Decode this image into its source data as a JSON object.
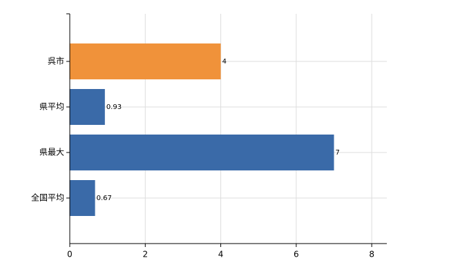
{
  "chart_data": {
    "type": "bar",
    "orientation": "horizontal",
    "categories": [
      "呉市",
      "県平均",
      "県最大",
      "全国平均"
    ],
    "values": [
      4,
      0.93,
      7,
      0.67
    ],
    "colors": [
      "#f0923a",
      "#3a6aa8",
      "#3a6aa8",
      "#3a6aa8"
    ],
    "xlim": [
      0,
      8.4
    ],
    "xticks": [
      0,
      2,
      4,
      6,
      8
    ],
    "grid": true
  }
}
